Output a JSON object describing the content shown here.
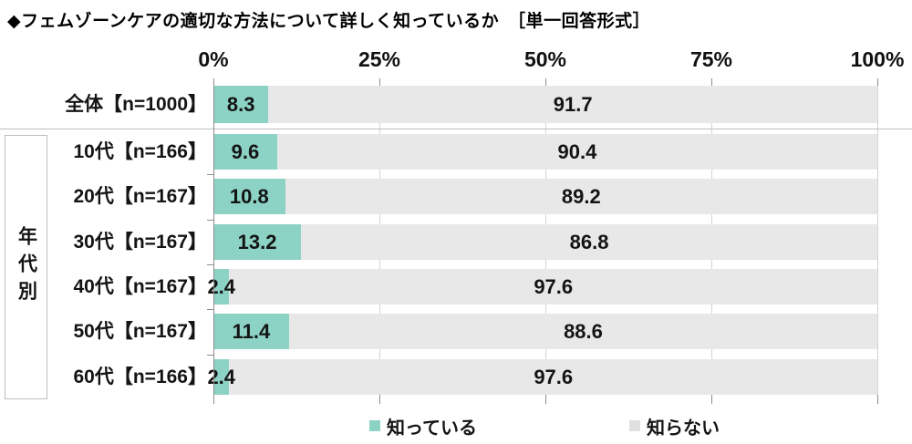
{
  "title": "◆フェムゾーンケアの適切な方法について詳しく知っているか　［単一回答形式］",
  "group_label": "年代別",
  "axis": {
    "tick_labels": [
      "0%",
      "25%",
      "50%",
      "75%",
      "100%"
    ]
  },
  "legend": [
    {
      "label": "知っている",
      "color": "#8CD2C5"
    },
    {
      "label": "知らない",
      "color": "#E0E0E0"
    }
  ],
  "colors": {
    "known_bar": "#8CD2C5",
    "unknown_bar": "#E8E8E8",
    "gridline": "#D4D4D4",
    "axis": "#8C8C8C"
  },
  "chart_data": {
    "type": "bar",
    "orientation": "horizontal-stacked",
    "title": "フェムゾーンケアの適切な方法について詳しく知っているか（単一回答形式）",
    "categories": [
      "全体【n=1000】",
      "10代【n=166】",
      "20代【n=167】",
      "30代【n=167】",
      "40代【n=167】",
      "50代【n=167】",
      "60代【n=166】"
    ],
    "series": [
      {
        "name": "知っている",
        "values": [
          8.3,
          9.6,
          10.8,
          13.2,
          2.4,
          11.4,
          2.4
        ]
      },
      {
        "name": "知らない",
        "values": [
          91.7,
          90.4,
          89.2,
          86.8,
          97.6,
          88.6,
          97.6
        ]
      }
    ],
    "xlim": [
      0,
      100
    ],
    "x_ticks": [
      0,
      25,
      50,
      75,
      100
    ],
    "grid": "vertical",
    "legend_position": "bottom",
    "group_annotation": {
      "label": "年代別",
      "applies_to": [
        "10代【n=166】",
        "20代【n=167】",
        "30代【n=167】",
        "40代【n=167】",
        "50代【n=167】",
        "60代【n=166】"
      ]
    }
  }
}
